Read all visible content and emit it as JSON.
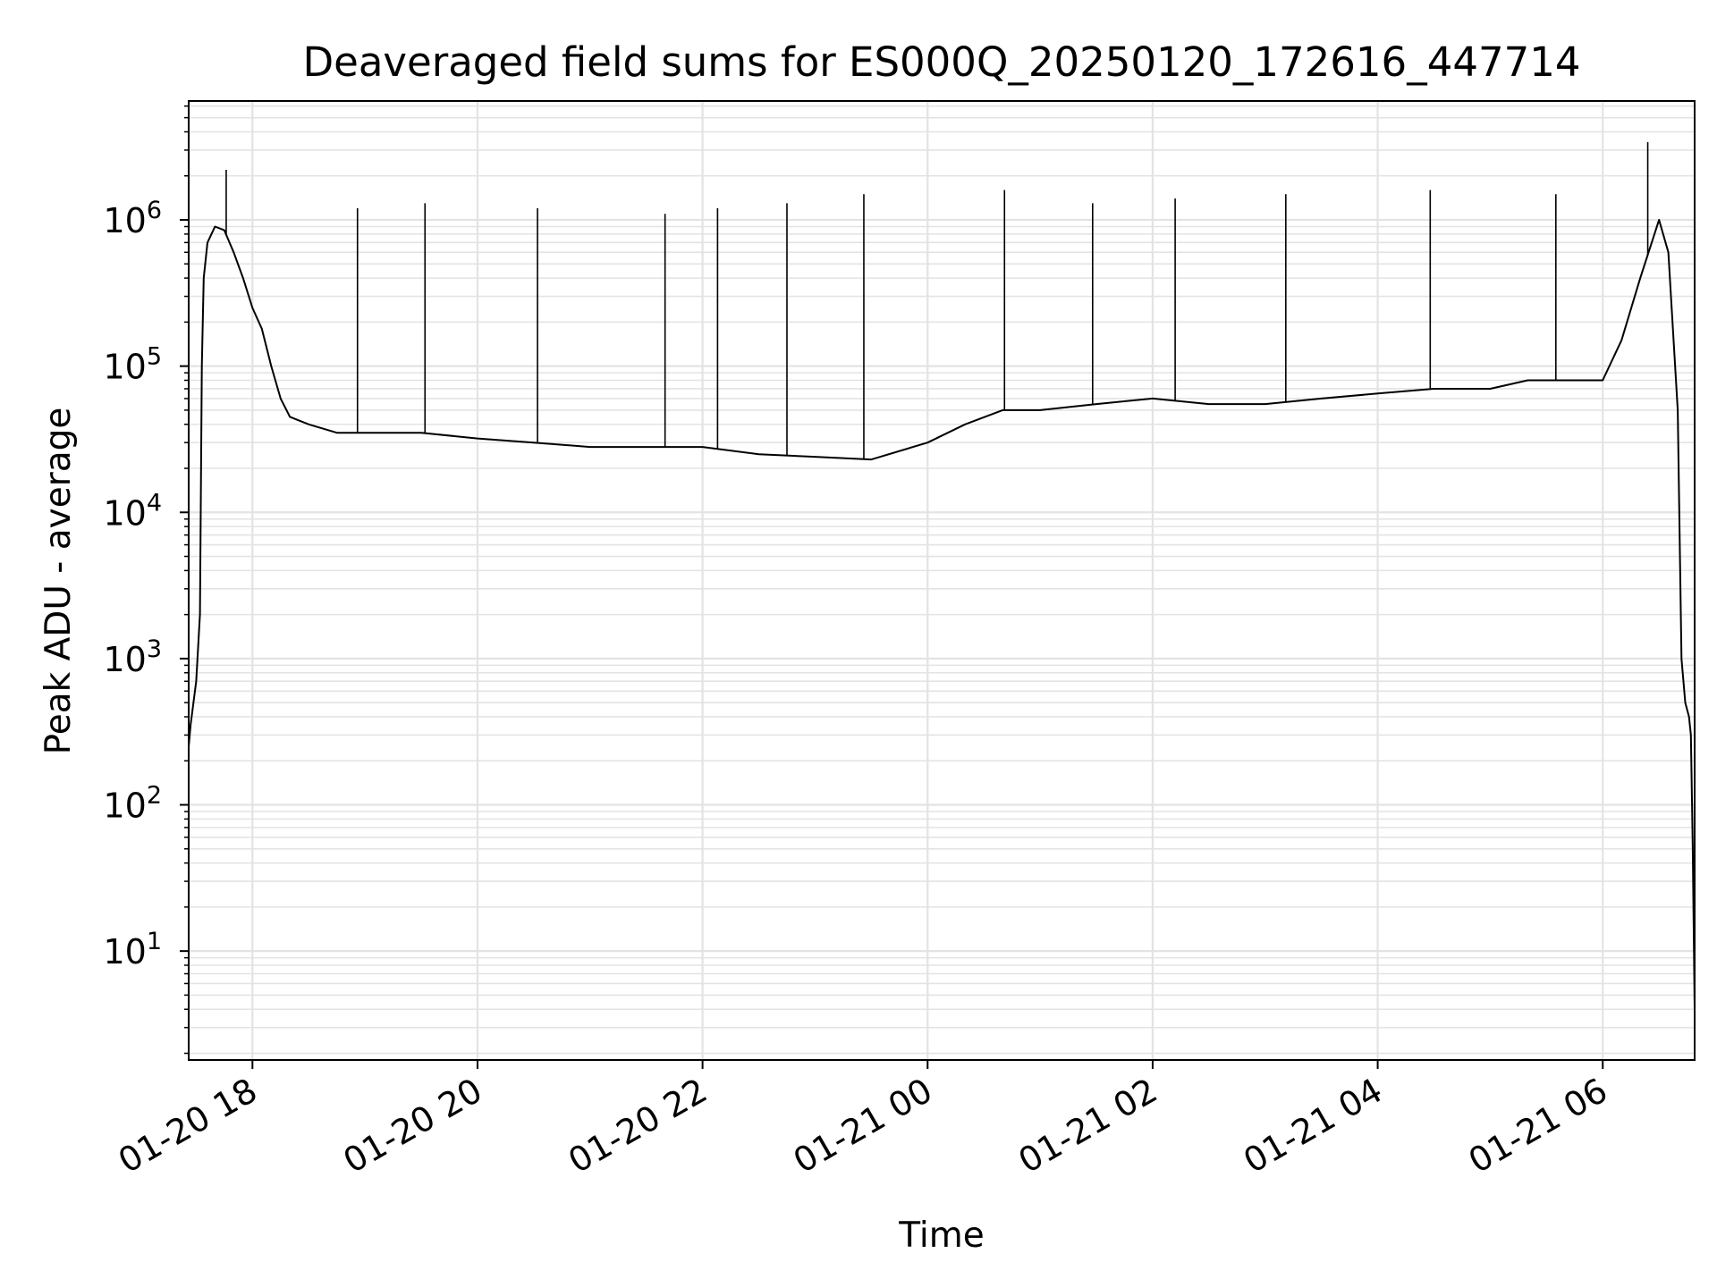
{
  "chart_data": {
    "type": "line",
    "title": "Deaveraged field sums for ES000Q_20250120_172616_447714",
    "xlabel": "Time",
    "ylabel": "Peak ADU - average",
    "yscale": "log",
    "xlim": [
      "2025-01-20T17:26",
      "2025-01-21T06:49"
    ],
    "ylim": [
      1.8,
      6500000
    ],
    "grid": true,
    "x_ticks": [
      {
        "t": "2025-01-20T18:00",
        "label": "01-20 18"
      },
      {
        "t": "2025-01-20T20:00",
        "label": "01-20 20"
      },
      {
        "t": "2025-01-20T22:00",
        "label": "01-20 22"
      },
      {
        "t": "2025-01-21T00:00",
        "label": "01-21 00"
      },
      {
        "t": "2025-01-21T02:00",
        "label": "01-21 02"
      },
      {
        "t": "2025-01-21T04:00",
        "label": "01-21 04"
      },
      {
        "t": "2025-01-21T06:00",
        "label": "01-21 06"
      }
    ],
    "y_ticks": [
      {
        "value": 10,
        "base": "10",
        "exp": "1"
      },
      {
        "value": 100,
        "base": "10",
        "exp": "2"
      },
      {
        "value": 1000,
        "base": "10",
        "exp": "3"
      },
      {
        "value": 10000,
        "base": "10",
        "exp": "4"
      },
      {
        "value": 100000,
        "base": "10",
        "exp": "5"
      },
      {
        "value": 1000000,
        "base": "10",
        "exp": "6"
      }
    ],
    "series": [
      {
        "color": "#000000",
        "x": [
          "2025-01-20T17:26",
          "2025-01-20T17:27",
          "2025-01-20T17:30",
          "2025-01-20T17:32",
          "2025-01-20T17:33",
          "2025-01-20T17:34",
          "2025-01-20T17:36",
          "2025-01-20T17:40",
          "2025-01-20T17:45",
          "2025-01-20T17:50",
          "2025-01-20T17:55",
          "2025-01-20T18:00",
          "2025-01-20T18:05",
          "2025-01-20T18:10",
          "2025-01-20T18:15",
          "2025-01-20T18:20",
          "2025-01-20T18:30",
          "2025-01-20T18:45",
          "2025-01-20T19:00",
          "2025-01-20T19:30",
          "2025-01-20T20:00",
          "2025-01-20T20:30",
          "2025-01-20T21:00",
          "2025-01-20T21:30",
          "2025-01-20T22:00",
          "2025-01-20T22:30",
          "2025-01-20T23:00",
          "2025-01-20T23:30",
          "2025-01-21T00:00",
          "2025-01-21T00:20",
          "2025-01-21T00:40",
          "2025-01-21T01:00",
          "2025-01-21T01:30",
          "2025-01-21T02:00",
          "2025-01-21T02:30",
          "2025-01-21T03:00",
          "2025-01-21T03:30",
          "2025-01-21T04:00",
          "2025-01-21T04:30",
          "2025-01-21T05:00",
          "2025-01-21T05:20",
          "2025-01-21T05:40",
          "2025-01-21T06:00",
          "2025-01-21T06:10",
          "2025-01-21T06:20",
          "2025-01-21T06:30",
          "2025-01-21T06:35",
          "2025-01-21T06:40",
          "2025-01-21T06:42",
          "2025-01-21T06:44",
          "2025-01-21T06:46",
          "2025-01-21T06:47",
          "2025-01-21T06:48",
          "2025-01-21T06:49"
        ],
        "y": [
          250,
          350,
          700,
          2000,
          100000,
          400000,
          700000,
          900000,
          850000,
          600000,
          400000,
          250000,
          180000,
          100000,
          60000,
          45000,
          40000,
          35000,
          35000,
          35000,
          32000,
          30000,
          28000,
          28000,
          28000,
          25000,
          24000,
          23000,
          30000,
          40000,
          50000,
          50000,
          55000,
          60000,
          55000,
          55000,
          60000,
          65000,
          70000,
          70000,
          80000,
          80000,
          80000,
          150000,
          400000,
          1000000,
          600000,
          50000,
          1000,
          500,
          400,
          300,
          50,
          4
        ],
        "spikes": [
          {
            "t": "2025-01-20T17:46",
            "y": 2200000
          },
          {
            "t": "2025-01-20T18:56",
            "y": 1200000
          },
          {
            "t": "2025-01-20T19:32",
            "y": 1300000
          },
          {
            "t": "2025-01-20T20:32",
            "y": 1200000
          },
          {
            "t": "2025-01-20T21:40",
            "y": 1100000
          },
          {
            "t": "2025-01-20T22:08",
            "y": 1200000
          },
          {
            "t": "2025-01-20T22:45",
            "y": 1300000
          },
          {
            "t": "2025-01-20T23:26",
            "y": 1500000
          },
          {
            "t": "2025-01-21T00:41",
            "y": 1600000
          },
          {
            "t": "2025-01-21T01:28",
            "y": 1300000
          },
          {
            "t": "2025-01-21T02:12",
            "y": 1400000
          },
          {
            "t": "2025-01-21T03:11",
            "y": 1500000
          },
          {
            "t": "2025-01-21T04:28",
            "y": 1600000
          },
          {
            "t": "2025-01-21T05:35",
            "y": 1500000
          },
          {
            "t": "2025-01-21T06:24",
            "y": 3400000
          }
        ]
      }
    ]
  }
}
